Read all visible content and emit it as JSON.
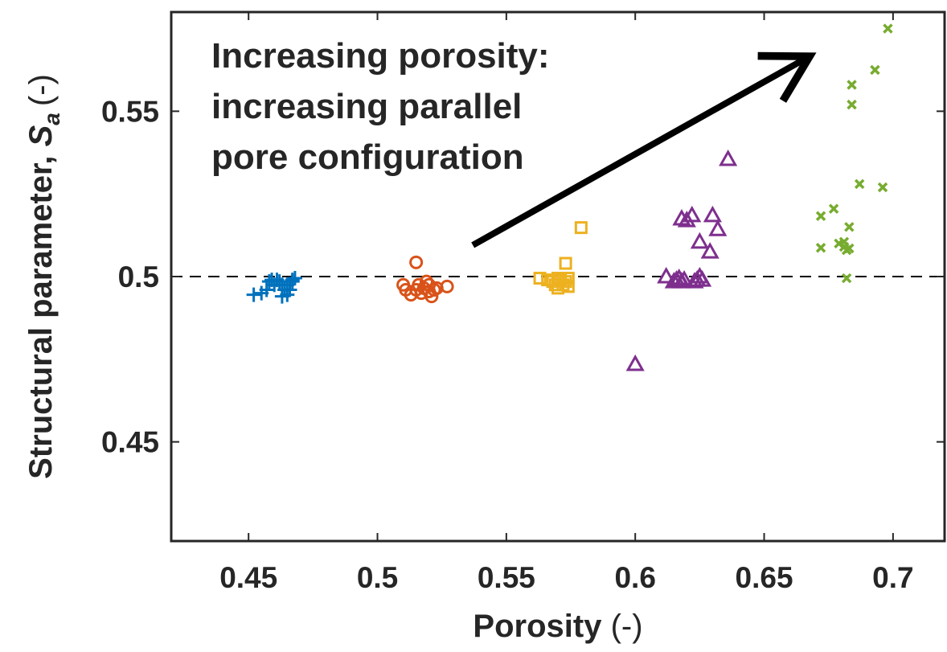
{
  "chart_data": {
    "type": "scatter",
    "title": "",
    "xlabel": "Porosity",
    "xlabel_unit": "(-)",
    "ylabel_prefix": "Structural parameter, ",
    "ylabel_symbol": "S",
    "ylabel_subscript": "a",
    "ylabel_unit": "(-)",
    "xlim": [
      0.42,
      0.72
    ],
    "ylim": [
      0.42,
      0.58
    ],
    "xticks": [
      0.45,
      0.5,
      0.55,
      0.6,
      0.65,
      0.7
    ],
    "xtick_labels": [
      "0.45",
      "0.5",
      "0.55",
      "0.6",
      "0.65",
      "0.7"
    ],
    "yticks": [
      0.45,
      0.5,
      0.55
    ],
    "ytick_labels": [
      "0.45",
      "0.5",
      "0.55"
    ],
    "grid": false,
    "reference_line": {
      "y": 0.5,
      "style": "dashed",
      "color": "#000000"
    },
    "annotation": {
      "lines": [
        "Increasing porosity:",
        "increasing parallel",
        "pore configuration"
      ],
      "arrow": {
        "from": [
          0.537,
          0.5095
        ],
        "to": [
          0.677,
          0.5705
        ]
      }
    },
    "series": [
      {
        "marker": "plus",
        "color": "#0072BD",
        "points": [
          [
            0.452,
            0.4945
          ],
          [
            0.455,
            0.495
          ],
          [
            0.457,
            0.496
          ],
          [
            0.458,
            0.4985
          ],
          [
            0.459,
            0.499
          ],
          [
            0.46,
            0.4975
          ],
          [
            0.461,
            0.499
          ],
          [
            0.462,
            0.4985
          ],
          [
            0.463,
            0.4975
          ],
          [
            0.463,
            0.494
          ],
          [
            0.464,
            0.496
          ],
          [
            0.465,
            0.4975
          ],
          [
            0.465,
            0.4945
          ],
          [
            0.466,
            0.496
          ],
          [
            0.467,
            0.499
          ],
          [
            0.467,
            0.4985
          ],
          [
            0.468,
            0.4995
          ]
        ]
      },
      {
        "marker": "circle",
        "color": "#D95319",
        "points": [
          [
            0.51,
            0.4975
          ],
          [
            0.511,
            0.496
          ],
          [
            0.513,
            0.4945
          ],
          [
            0.515,
            0.5043
          ],
          [
            0.515,
            0.496
          ],
          [
            0.516,
            0.4975
          ],
          [
            0.517,
            0.495
          ],
          [
            0.518,
            0.4965
          ],
          [
            0.519,
            0.4985
          ],
          [
            0.52,
            0.4975
          ],
          [
            0.52,
            0.4955
          ],
          [
            0.521,
            0.494
          ],
          [
            0.522,
            0.496
          ],
          [
            0.523,
            0.4965
          ],
          [
            0.527,
            0.497
          ]
        ]
      },
      {
        "marker": "square",
        "color": "#EDB120",
        "points": [
          [
            0.563,
            0.4995
          ],
          [
            0.566,
            0.499
          ],
          [
            0.568,
            0.4985
          ],
          [
            0.569,
            0.4975
          ],
          [
            0.57,
            0.4965
          ],
          [
            0.57,
            0.4995
          ],
          [
            0.571,
            0.499
          ],
          [
            0.572,
            0.4975
          ],
          [
            0.573,
            0.4985
          ],
          [
            0.574,
            0.497
          ],
          [
            0.573,
            0.504
          ],
          [
            0.574,
            0.4995
          ],
          [
            0.579,
            0.5148
          ]
        ]
      },
      {
        "marker": "triangle",
        "color": "#7E2F8E",
        "points": [
          [
            0.6,
            0.4735
          ],
          [
            0.612,
            0.5
          ],
          [
            0.615,
            0.4985
          ],
          [
            0.616,
            0.499
          ],
          [
            0.617,
            0.4995
          ],
          [
            0.618,
            0.4985
          ],
          [
            0.618,
            0.5175
          ],
          [
            0.619,
            0.499
          ],
          [
            0.62,
            0.517
          ],
          [
            0.622,
            0.5185
          ],
          [
            0.623,
            0.4985
          ],
          [
            0.624,
            0.499
          ],
          [
            0.625,
            0.5
          ],
          [
            0.625,
            0.5105
          ],
          [
            0.626,
            0.499
          ],
          [
            0.629,
            0.5075
          ],
          [
            0.63,
            0.5185
          ],
          [
            0.632,
            0.5143
          ],
          [
            0.636,
            0.5355
          ]
        ]
      },
      {
        "marker": "x",
        "color": "#77AC30",
        "points": [
          [
            0.672,
            0.5087
          ],
          [
            0.672,
            0.5183
          ],
          [
            0.677,
            0.5205
          ],
          [
            0.679,
            0.51
          ],
          [
            0.681,
            0.509
          ],
          [
            0.681,
            0.5105
          ],
          [
            0.682,
            0.508
          ],
          [
            0.682,
            0.4995
          ],
          [
            0.683,
            0.515
          ],
          [
            0.683,
            0.5085
          ],
          [
            0.684,
            0.552
          ],
          [
            0.684,
            0.558
          ],
          [
            0.687,
            0.528
          ],
          [
            0.693,
            0.5625
          ],
          [
            0.696,
            0.527
          ],
          [
            0.698,
            0.575
          ]
        ]
      }
    ]
  }
}
